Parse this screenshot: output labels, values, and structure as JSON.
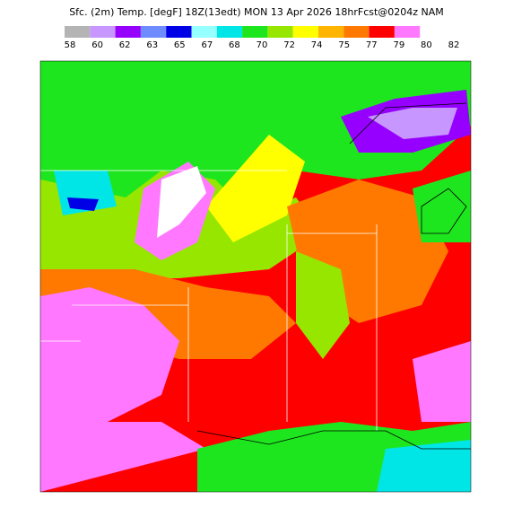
{
  "header": {
    "title": "Sfc. (2m) Temp. [degF] 18Z(13edt) MON 13 Apr 2026 18hrFcst@0204z NAM"
  },
  "colorbar": {
    "labels": [
      58,
      60,
      62,
      63,
      65,
      67,
      68,
      70,
      72,
      74,
      75,
      77,
      79,
      80,
      82
    ],
    "colors": [
      "#b4b4b4",
      "#c896ff",
      "#9600ff",
      "#6e8cff",
      "#0000e6",
      "#96ffff",
      "#00e6e6",
      "#1ee61e",
      "#96e600",
      "#ffff00",
      "#ffb400",
      "#ff7800",
      "#ff0000",
      "#ff78ff"
    ]
  }
}
